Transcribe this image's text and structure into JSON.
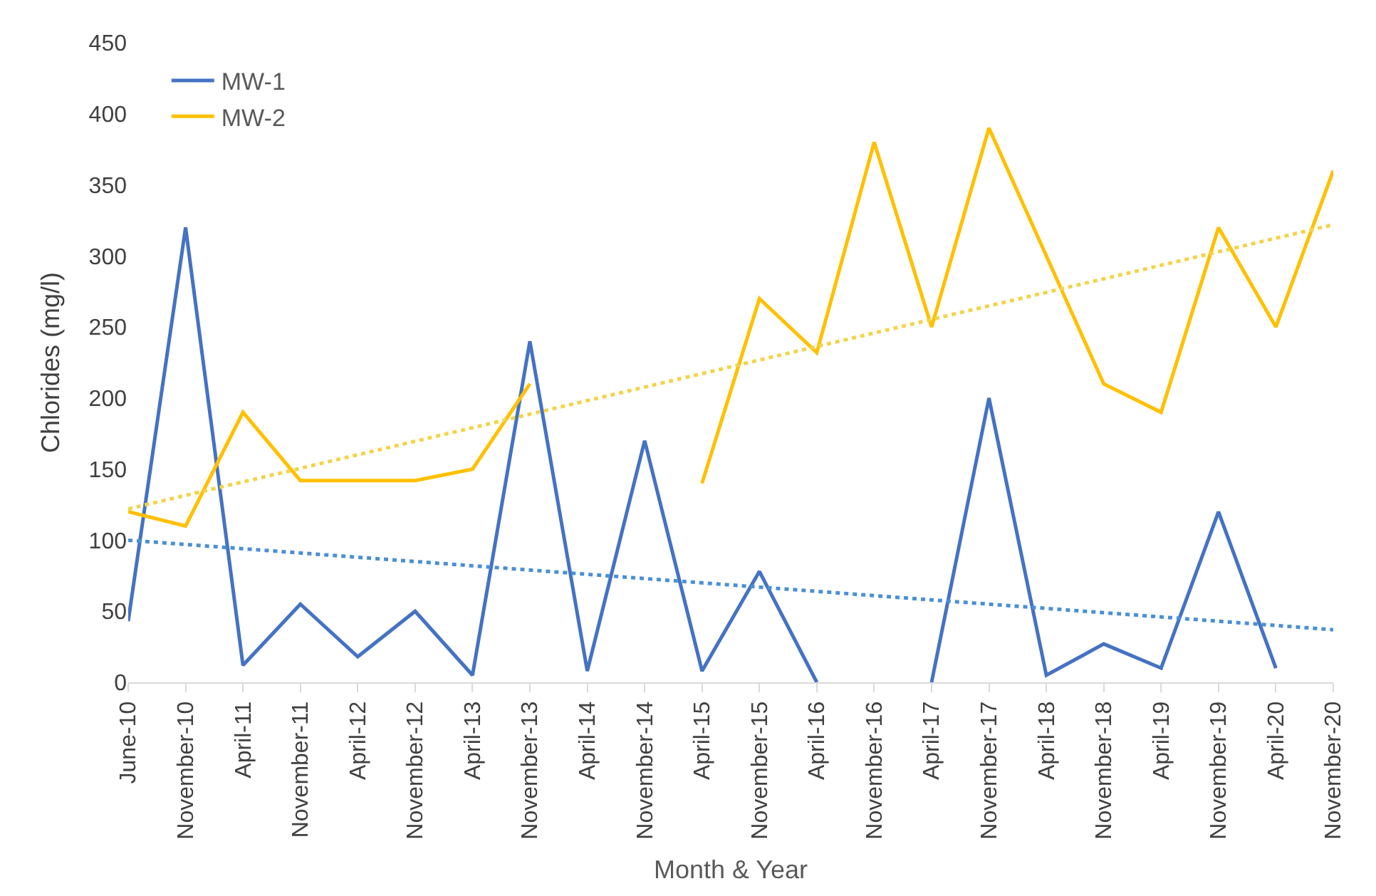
{
  "chart_data": {
    "type": "line",
    "xlabel": "Month & Year",
    "ylabel": "Chlorides (mg/l)",
    "categories": [
      "June-10",
      "November-10",
      "April-11",
      "November-11",
      "April-12",
      "November-12",
      "April-13",
      "November-13",
      "April-14",
      "November-14",
      "April-15",
      "November-15",
      "April-16",
      "November-16",
      "April-17",
      "November-17",
      "April-18",
      "November-18",
      "April-19",
      "November-19",
      "April-20",
      "November-20"
    ],
    "series": [
      {
        "name": "MW-1",
        "color": "#4472c4",
        "values": [
          43,
          320,
          12,
          55,
          18,
          50,
          5,
          240,
          8,
          170,
          8,
          78,
          0,
          null,
          0,
          200,
          5,
          27,
          10,
          120,
          10,
          null
        ]
      },
      {
        "name": "MW-2",
        "color": "#ffc000",
        "values": [
          120,
          110,
          190,
          142,
          142,
          142,
          150,
          210,
          null,
          null,
          140,
          270,
          232,
          380,
          250,
          390,
          300,
          210,
          190,
          320,
          250,
          360
        ]
      },
      {
        "type": "line",
        "color": "#4a8fd4",
        "line_style": "dotted",
        "x": [
          "June-10",
          "November-20"
        ],
        "values": [
          100,
          37
        ]
      },
      {
        "type": "line",
        "color": "#f2d44a",
        "line_style": "dotted",
        "x": [
          "June-10",
          "November-20"
        ],
        "values": [
          122,
          322
        ]
      }
    ],
    "ylim": [
      0,
      450
    ],
    "yticks": [
      0,
      50,
      100,
      150,
      200,
      250,
      300,
      350,
      400,
      450
    ],
    "grid": false,
    "legend": "top left",
    "line_style": "solid",
    "marker": "none"
  }
}
